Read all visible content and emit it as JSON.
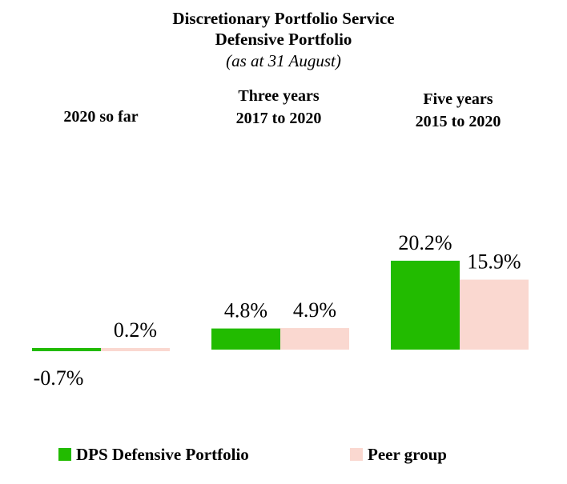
{
  "chart_data": {
    "type": "bar",
    "title": [
      "Discretionary Portfolio Service",
      "Defensive Portfolio"
    ],
    "subtitle": "(as at 31 August)",
    "categories": [
      [
        "2020 so far"
      ],
      [
        "Three years",
        "2017 to 2020"
      ],
      [
        "Five years",
        "2015 to 2020"
      ]
    ],
    "series": [
      {
        "name": "DPS Defensive Portfolio",
        "color": "#22bb00",
        "values": [
          -0.7,
          4.8,
          20.2
        ],
        "labels": [
          "-0.7%",
          "4.8%",
          "20.2%"
        ]
      },
      {
        "name": "Peer group",
        "color": "#fad8d0",
        "values": [
          0.2,
          4.9,
          15.9
        ],
        "labels": [
          "0.2%",
          "4.9%",
          "15.9%"
        ]
      }
    ],
    "xlabel": "",
    "ylabel": "",
    "grid": false,
    "legend_position": "bottom"
  }
}
